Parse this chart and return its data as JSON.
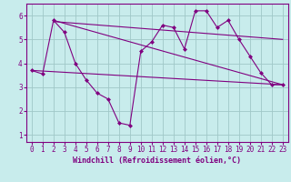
{
  "bg_color": "#c8ecec",
  "grid_color": "#a0c8c8",
  "line_color": "#800080",
  "xlabel": "Windchill (Refroidissement éolien,°C)",
  "ylim": [
    0.7,
    6.5
  ],
  "xlim": [
    -0.5,
    23.5
  ],
  "yticks": [
    1,
    2,
    3,
    4,
    5,
    6
  ],
  "xticks": [
    0,
    1,
    2,
    3,
    4,
    5,
    6,
    7,
    8,
    9,
    10,
    11,
    12,
    13,
    14,
    15,
    16,
    17,
    18,
    19,
    20,
    21,
    22,
    23
  ],
  "line1_x": [
    0,
    1,
    2,
    3,
    4,
    5,
    6,
    7,
    8,
    9,
    10,
    11,
    12,
    13,
    14,
    15,
    16,
    17,
    18,
    19,
    20,
    21,
    22,
    23
  ],
  "line1_y": [
    3.7,
    3.55,
    5.8,
    5.3,
    4.0,
    3.3,
    2.75,
    2.5,
    1.5,
    1.4,
    4.5,
    4.9,
    5.6,
    5.5,
    4.6,
    6.2,
    6.2,
    5.5,
    5.8,
    5.0,
    4.3,
    3.6,
    3.1,
    3.1
  ],
  "line2_x": [
    0,
    23
  ],
  "line2_y": [
    3.7,
    3.1
  ],
  "line3_x": [
    2,
    23
  ],
  "line3_y": [
    5.8,
    3.1
  ],
  "line4_x": [
    2,
    23
  ],
  "line4_y": [
    5.75,
    5.0
  ],
  "tick_fontsize": 5.5,
  "xlabel_fontsize": 6.0
}
